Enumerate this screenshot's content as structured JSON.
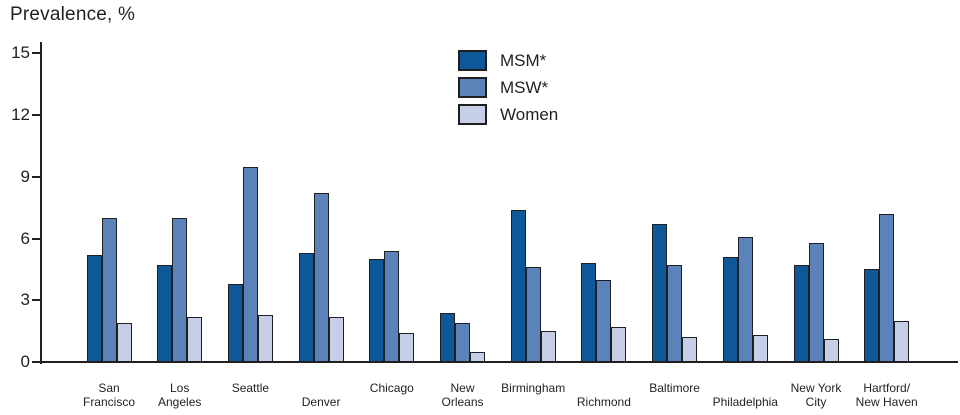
{
  "title": "Prevalence, %",
  "legend": [
    {
      "label": "MSM*",
      "color": "#0e5799"
    },
    {
      "label": "MSW*",
      "color": "#5b82b9"
    },
    {
      "label": "Women",
      "color": "#c5cfe8"
    }
  ],
  "chart_data": {
    "type": "bar",
    "title": "Prevalence, %",
    "ylabel": "Prevalence, %",
    "xlabel": "",
    "ylim": [
      0,
      15
    ],
    "yticks": [
      15,
      12,
      9,
      6,
      3,
      0
    ],
    "grid": false,
    "legend_position": "top-center",
    "bar_border_color": "#1f1f1f",
    "axis_color": "#231f20",
    "categories": [
      "San Francisco",
      "Los Angeles",
      "Seattle",
      "Denver",
      "Chicago",
      "New Orleans",
      "Birmingham",
      "Richmond",
      "Baltimore",
      "Philadelphia",
      "New York City",
      "Hartford/New Haven"
    ],
    "category_label_lines": [
      [
        "San",
        "Francisco"
      ],
      [
        "Los",
        "Angeles"
      ],
      [
        "Seattle",
        ""
      ],
      [
        "",
        "Denver"
      ],
      [
        "Chicago",
        ""
      ],
      [
        "New",
        "Orleans"
      ],
      [
        "Birmingham",
        ""
      ],
      [
        "",
        "Richmond"
      ],
      [
        "Baltimore",
        ""
      ],
      [
        "",
        "Philadelphia"
      ],
      [
        "New York",
        "City"
      ],
      [
        "Hartford/",
        "New Haven"
      ]
    ],
    "series": [
      {
        "name": "MSM*",
        "color": "#0e5799",
        "values": [
          5.2,
          4.7,
          3.8,
          5.3,
          5.0,
          2.4,
          7.4,
          4.8,
          6.7,
          5.1,
          4.7,
          4.5
        ]
      },
      {
        "name": "MSW*",
        "color": "#5b82b9",
        "values": [
          7.0,
          7.0,
          9.5,
          8.2,
          5.4,
          1.9,
          4.6,
          4.0,
          4.7,
          6.1,
          5.8,
          7.2
        ]
      },
      {
        "name": "Women",
        "color": "#c5cfe8",
        "values": [
          1.9,
          2.2,
          2.3,
          2.2,
          1.4,
          0.5,
          1.5,
          1.7,
          1.2,
          1.3,
          1.1,
          2.0
        ]
      }
    ]
  }
}
